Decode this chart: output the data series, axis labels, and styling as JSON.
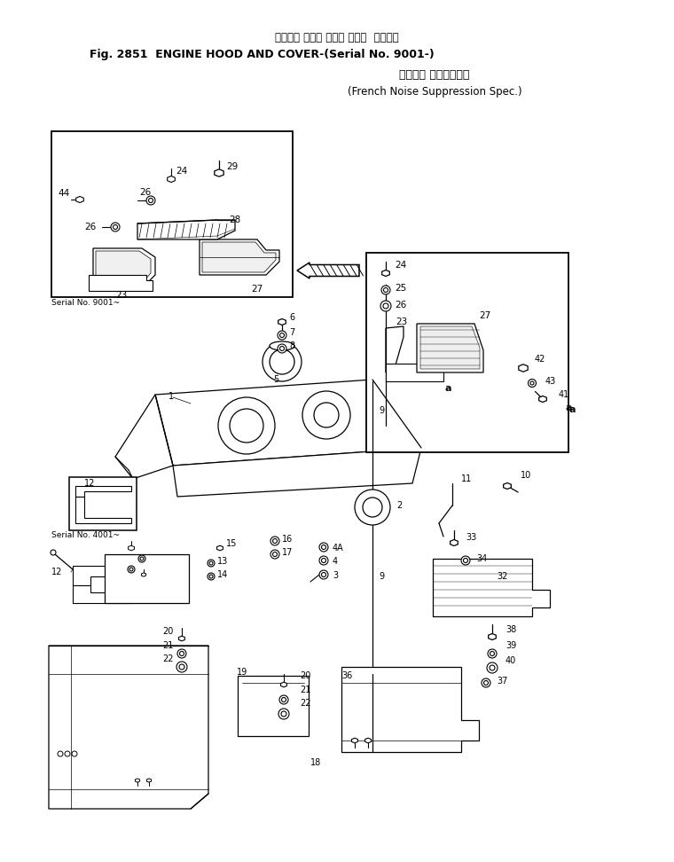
{
  "title1": "エンジン フード および カバー  適用号機",
  "title2": "Fig. 2851  ENGINE HOOD AND COVER-(Serial No. 9001-)",
  "title3": "フランス 電音規制仕様",
  "title4": "(French Noise Suppression Spec.)",
  "serial9001": "Serial No. 9001~",
  "serial4001": "Serial No. 4001~",
  "bg": "#ffffff",
  "lc": "#000000"
}
